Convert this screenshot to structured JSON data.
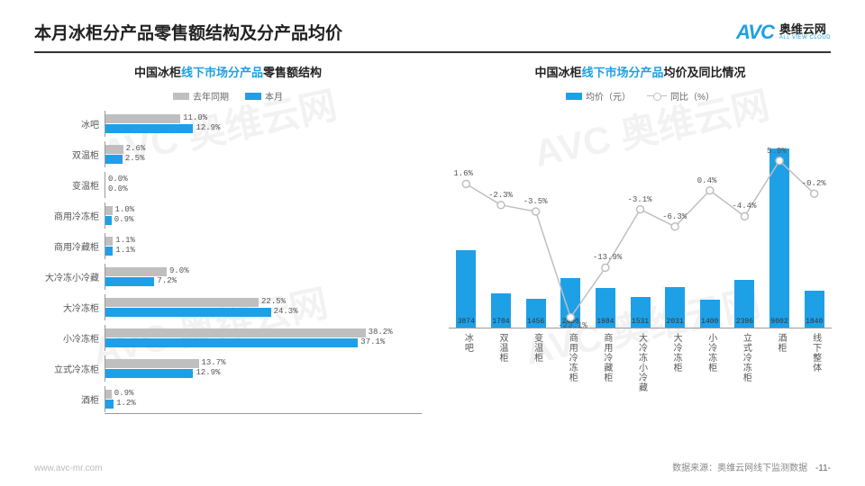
{
  "header": {
    "title": "本月冰柜分产品零售额结构及分产品均价",
    "logo_cn": "奥维云网",
    "logo_en": "ALL VIEW CLOUD",
    "logo_mark": "AVC"
  },
  "left_chart": {
    "title_pre": "中国冰柜",
    "title_blue": "线下市场分产品",
    "title_post": "零售额结构",
    "legend_prev": "去年同期",
    "legend_curr": "本月",
    "color_prev": "#bfbfbf",
    "color_curr": "#1ea0e6",
    "xmax": 45,
    "categories": [
      {
        "name": "冰吧",
        "prev": 11.0,
        "curr": 12.9
      },
      {
        "name": "双温柜",
        "prev": 2.6,
        "curr": 2.5
      },
      {
        "name": "变温柜",
        "prev": 0.0,
        "curr": 0.0
      },
      {
        "name": "商用冷冻柜",
        "prev": 1.0,
        "curr": 0.9
      },
      {
        "name": "商用冷藏柜",
        "prev": 1.1,
        "curr": 1.1
      },
      {
        "name": "大冷冻小冷藏",
        "prev": 9.0,
        "curr": 7.2
      },
      {
        "name": "大冷冻柜",
        "prev": 22.5,
        "curr": 24.3
      },
      {
        "name": "小冷冻柜",
        "prev": 38.2,
        "curr": 37.1
      },
      {
        "name": "立式冷冻柜",
        "prev": 13.7,
        "curr": 12.9
      },
      {
        "name": "酒柜",
        "prev": 0.9,
        "curr": 1.2
      }
    ]
  },
  "right_chart": {
    "title_pre": "中国冰柜",
    "title_blue": "线下市场分产品",
    "title_post": "均价及同比情况",
    "legend_price": "均价（元）",
    "legend_yoy": "同比（%）",
    "bar_color": "#1ea0e6",
    "line_color": "#bfbfbf",
    "price_max": 9500,
    "yoy_min": -25,
    "yoy_max": 10,
    "items": [
      {
        "name": "冰吧",
        "price": 3874,
        "yoy": 1.6
      },
      {
        "name": "双温柜",
        "price": 1704,
        "yoy": -2.3
      },
      {
        "name": "变温柜",
        "price": 1456,
        "yoy": -3.5
      },
      {
        "name": "商用冷冻柜",
        "price": 2490,
        "yoy": -23.1
      },
      {
        "name": "商用冷藏柜",
        "price": 1984,
        "yoy": -13.9
      },
      {
        "name": "大冷冻小冷藏",
        "price": 1531,
        "yoy": -3.1
      },
      {
        "name": "大冷冻柜",
        "price": 2031,
        "yoy": -6.3
      },
      {
        "name": "小冷冻柜",
        "price": 1400,
        "yoy": 0.4
      },
      {
        "name": "立式冷冻柜",
        "price": 2396,
        "yoy": -4.4
      },
      {
        "name": "酒柜",
        "price": 9002,
        "yoy": 5.9
      },
      {
        "name": "线下整体",
        "price": 1840,
        "yoy": -0.2
      }
    ]
  },
  "footer": {
    "url": "www.avc-mr.com",
    "source": "数据来源：奥维云网线下监测数据",
    "page": "-11-"
  },
  "watermark": "AVC 奥维云网"
}
